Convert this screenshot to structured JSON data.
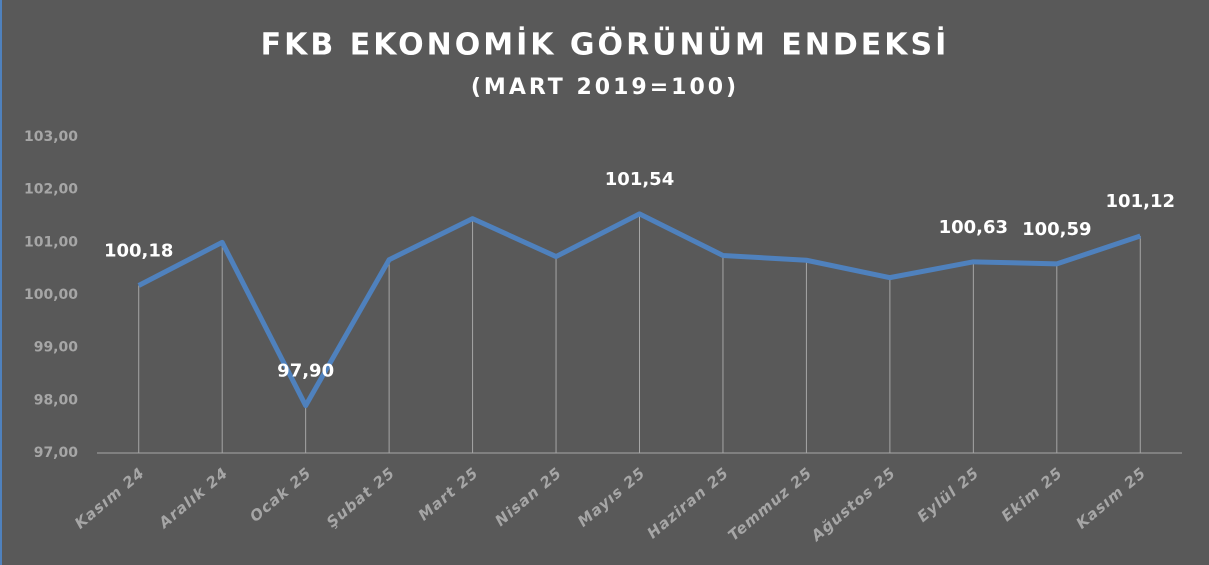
{
  "chart_data": {
    "type": "line",
    "title": "FKB EKONOMİK GÖRÜNÜM ENDEKSİ",
    "subtitle": "(MART 2019=100)",
    "categories": [
      "Kasım 24",
      "Aralık 24",
      "Ocak 25",
      "Şubat 25",
      "Mart 25",
      "Nisan 25",
      "Mayıs 25",
      "Haziran 25",
      "Temmuz 25",
      "Ağustos 25",
      "Eylül 25",
      "Ekim 25",
      "Kasım 25"
    ],
    "values": [
      100.18,
      101.0,
      97.9,
      100.67,
      101.45,
      100.73,
      101.54,
      100.75,
      100.66,
      100.33,
      100.63,
      100.59,
      101.12
    ],
    "value_labels": [
      "100,18",
      null,
      "97,90",
      null,
      null,
      null,
      "101,54",
      null,
      null,
      null,
      "100,63",
      "100,59",
      "101,12"
    ],
    "color": "#4f81bd",
    "ylim": [
      97,
      103
    ],
    "yticks": [
      {
        "value": 97,
        "label": "97,00"
      },
      {
        "value": 98,
        "label": "98,00"
      },
      {
        "value": 99,
        "label": "99,00"
      },
      {
        "value": 100,
        "label": "100,00"
      },
      {
        "value": 101,
        "label": "101,00"
      },
      {
        "value": 102,
        "label": "102,00"
      },
      {
        "value": 103,
        "label": "103,00"
      }
    ],
    "drop_lines": true
  }
}
